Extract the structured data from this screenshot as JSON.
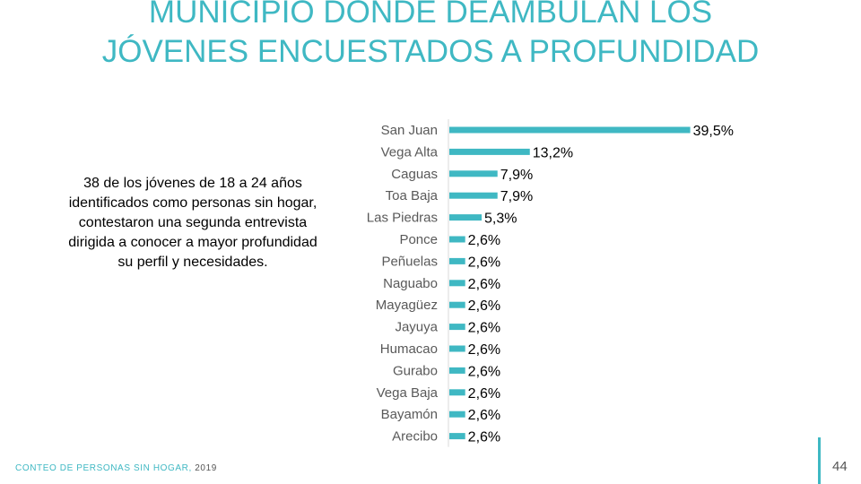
{
  "slide": {
    "title": "MUNICIPIO DONDE DEAMBULAN LOS JÓVENES ENCUESTADOS A PROFUNDIDAD",
    "note": "38 de los jóvenes de 18 a 24 años identificados como personas sin hogar, contestaron una segunda entrevista dirigida a conocer a mayor profundidad su perfil y necesidades.",
    "footer_label": "CONTEO DE PERSONAS SIN HOGAR,",
    "footer_year": "2019",
    "page_number": "44",
    "accent_color": "#3fb8c3"
  },
  "chart_data": {
    "type": "bar",
    "orientation": "horizontal",
    "categories": [
      "San Juan",
      "Vega Alta",
      "Caguas",
      "Toa Baja",
      "Las Piedras",
      "Ponce",
      "Peñuelas",
      "Naguabo",
      "Mayagüez",
      "Jayuya",
      "Humacao",
      "Gurabo",
      "Vega Baja",
      "Bayamón",
      "Arecibo"
    ],
    "values": [
      39.5,
      13.2,
      7.9,
      7.9,
      5.3,
      2.6,
      2.6,
      2.6,
      2.6,
      2.6,
      2.6,
      2.6,
      2.6,
      2.6,
      2.6
    ],
    "value_labels": [
      "39,5%",
      "13,2%",
      "7,9%",
      "7,9%",
      "5,3%",
      "2,6%",
      "2,6%",
      "2,6%",
      "2,6%",
      "2,6%",
      "2,6%",
      "2,6%",
      "2,6%",
      "2,6%",
      "2,6%"
    ],
    "unit": "%",
    "xlim": [
      0,
      40
    ],
    "grid": false,
    "legend": "none",
    "bar_color": "#3fb8c3"
  }
}
